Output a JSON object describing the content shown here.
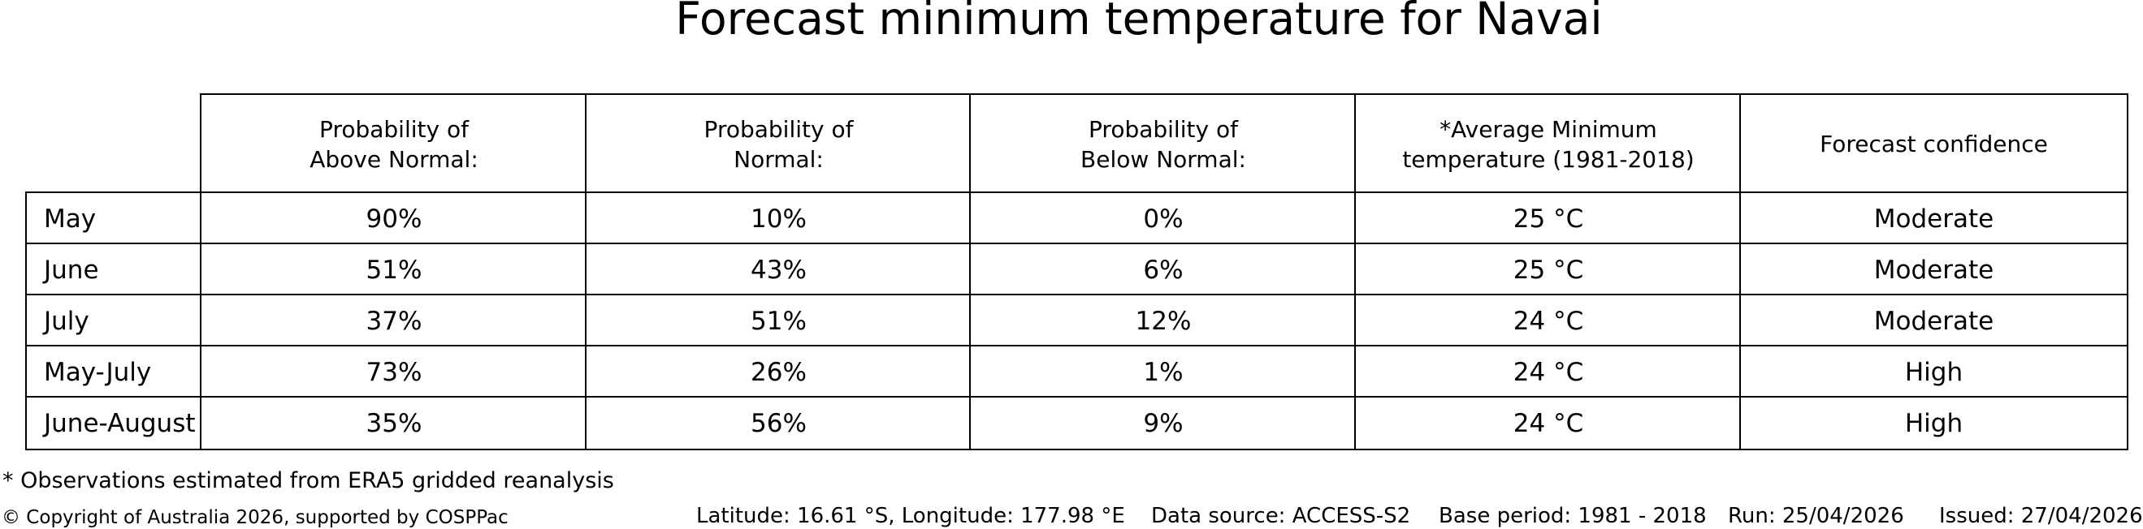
{
  "title": "Forecast minimum temperature for Navai",
  "table": {
    "columns": [
      "Probability of\nAbove Normal:",
      "Probability of\nNormal:",
      "Probability of\nBelow Normal:",
      "*Average Minimum\ntemperature (1981-2018)",
      "Forecast confidence"
    ],
    "rows": [
      {
        "label": "May",
        "above": "90%",
        "normal": "10%",
        "below": "0%",
        "avg_min": "25 °C",
        "confidence": "Moderate"
      },
      {
        "label": "June",
        "above": "51%",
        "normal": "43%",
        "below": "6%",
        "avg_min": "25 °C",
        "confidence": "Moderate"
      },
      {
        "label": "July",
        "above": "37%",
        "normal": "51%",
        "below": "12%",
        "avg_min": "24 °C",
        "confidence": "Moderate"
      },
      {
        "label": "May-July",
        "above": "73%",
        "normal": "26%",
        "below": "1%",
        "avg_min": "24 °C",
        "confidence": "High"
      },
      {
        "label": "June-August",
        "above": "35%",
        "normal": "56%",
        "below": "9%",
        "avg_min": "24 °C",
        "confidence": "High"
      }
    ]
  },
  "footnote": "* Observations estimated from ERA5 gridded reanalysis",
  "footer": {
    "copyright": "© Copyright of Australia 2026, supported by COSPPac",
    "location": "Latitude: 16.61 °S, Longitude: 177.98 °E",
    "data_source": "Data source: ACCESS-S2",
    "base_period": "Base period: 1981 - 2018",
    "run": "Run: 25/04/2026",
    "issued": "Issued: 27/04/2026"
  },
  "colors": {
    "text": "#000000",
    "border": "#000000",
    "background": "#ffffff"
  },
  "chart_data": {
    "type": "table",
    "title": "Forecast minimum temperature for Navai",
    "row_labels": [
      "May",
      "June",
      "July",
      "May-July",
      "June-August"
    ],
    "columns": [
      "Probability of Above Normal:",
      "Probability of Normal:",
      "Probability of Below Normal:",
      "*Average Minimum temperature (1981-2018)",
      "Forecast confidence"
    ],
    "probability_above_normal_pct": [
      90,
      51,
      37,
      73,
      35
    ],
    "probability_normal_pct": [
      10,
      43,
      51,
      26,
      56
    ],
    "probability_below_normal_pct": [
      0,
      6,
      12,
      1,
      9
    ],
    "average_minimum_temperature_c": [
      25,
      25,
      24,
      24,
      24
    ],
    "forecast_confidence": [
      "Moderate",
      "Moderate",
      "Moderate",
      "High",
      "High"
    ],
    "footnote": "* Observations estimated from ERA5 gridded reanalysis",
    "layout": {
      "grid": "table borders on all cells, no cell above row-label column",
      "legend": "none"
    }
  }
}
